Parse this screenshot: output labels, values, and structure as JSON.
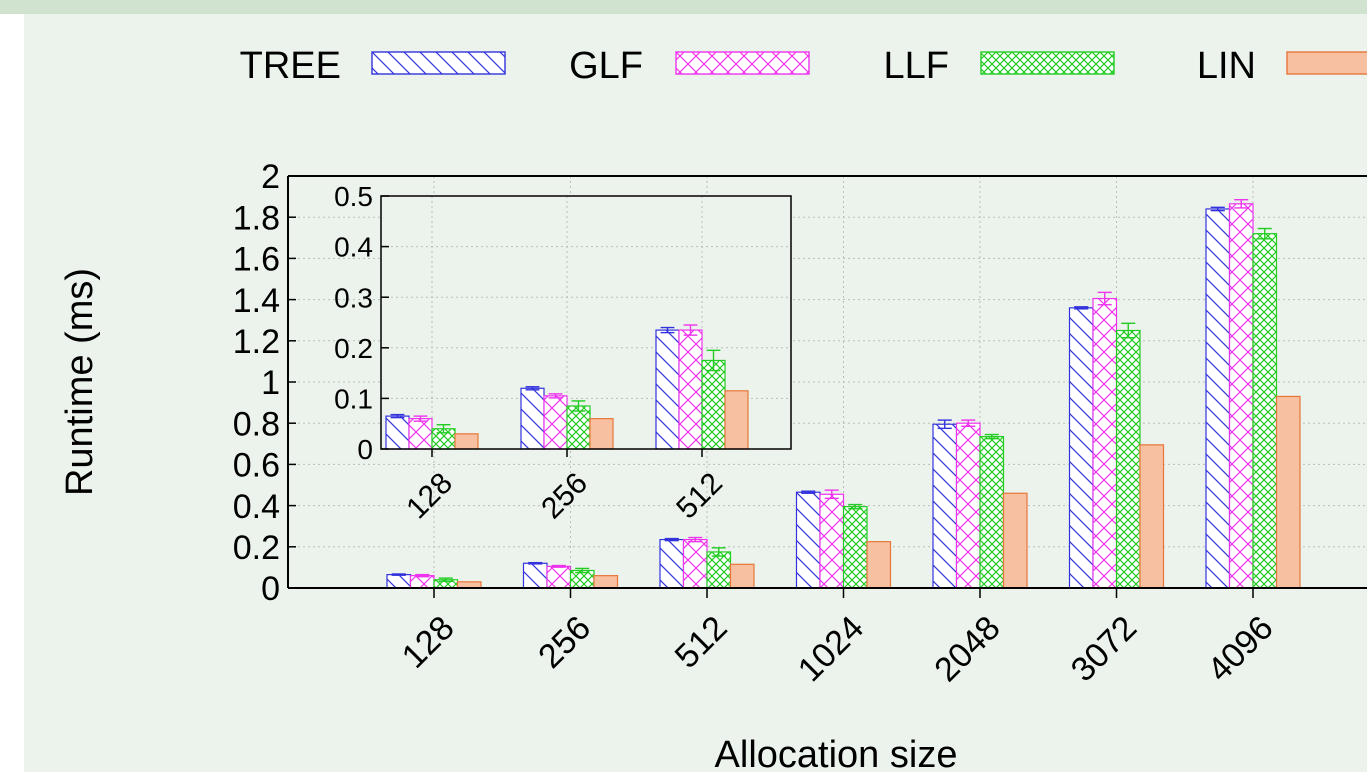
{
  "colors": {
    "TREE": "#3333dd",
    "GLF": "#ee33ee",
    "LLF": "#22cc22",
    "LIN": "#e8763a",
    "LIN_fill": "#f7c0a0",
    "panel_bg": "#ecf3ec",
    "title_color": "#0b5a1e"
  },
  "chart_data": [
    {
      "id": "main",
      "type": "bar",
      "xlabel": "Allocation size",
      "ylabel": "Runtime (ms)",
      "categories": [
        "128",
        "256",
        "512",
        "1024",
        "2048",
        "3072",
        "4096"
      ],
      "ylim": [
        0,
        2
      ],
      "yticks": [
        "0",
        "0.2",
        "0.4",
        "0.6",
        "0.8",
        "1",
        "1.2",
        "1.4",
        "1.6",
        "1.8",
        "2"
      ],
      "grid": true,
      "legend_position": "top",
      "series": [
        {
          "name": "TREE",
          "pattern": "diagonal-hatch",
          "values": [
            0.065,
            0.12,
            0.235,
            0.465,
            0.795,
            1.36,
            1.84
          ],
          "errors": [
            0.003,
            0.003,
            0.005,
            0.005,
            0.02,
            0.005,
            0.008
          ]
        },
        {
          "name": "GLF",
          "pattern": "cross-hatch",
          "values": [
            0.06,
            0.105,
            0.235,
            0.455,
            0.8,
            1.405,
            1.865
          ],
          "errors": [
            0.005,
            0.004,
            0.01,
            0.02,
            0.015,
            0.03,
            0.02
          ]
        },
        {
          "name": "LLF",
          "pattern": "fine-cross-hatch",
          "values": [
            0.04,
            0.085,
            0.175,
            0.395,
            0.735,
            1.25,
            1.72
          ],
          "errors": [
            0.008,
            0.01,
            0.02,
            0.01,
            0.01,
            0.035,
            0.025
          ]
        },
        {
          "name": "LIN",
          "pattern": "solid",
          "values": [
            0.03,
            0.06,
            0.115,
            0.225,
            0.46,
            0.695,
            0.93
          ],
          "errors": [
            0,
            0,
            0,
            0,
            0,
            0,
            0
          ]
        }
      ]
    },
    {
      "id": "inset",
      "type": "bar",
      "categories": [
        "128",
        "256",
        "512"
      ],
      "ylim": [
        0,
        0.5
      ],
      "yticks": [
        "0",
        "0.1",
        "0.2",
        "0.3",
        "0.4",
        "0.5"
      ],
      "grid": true,
      "series": [
        {
          "name": "TREE",
          "values": [
            0.065,
            0.12,
            0.235
          ],
          "errors": [
            0.003,
            0.003,
            0.005
          ]
        },
        {
          "name": "GLF",
          "values": [
            0.06,
            0.105,
            0.235
          ],
          "errors": [
            0.005,
            0.004,
            0.01
          ]
        },
        {
          "name": "LLF",
          "values": [
            0.04,
            0.085,
            0.175
          ],
          "errors": [
            0.008,
            0.01,
            0.02
          ]
        },
        {
          "name": "LIN",
          "values": [
            0.03,
            0.06,
            0.115
          ],
          "errors": [
            0,
            0,
            0
          ]
        }
      ]
    }
  ]
}
